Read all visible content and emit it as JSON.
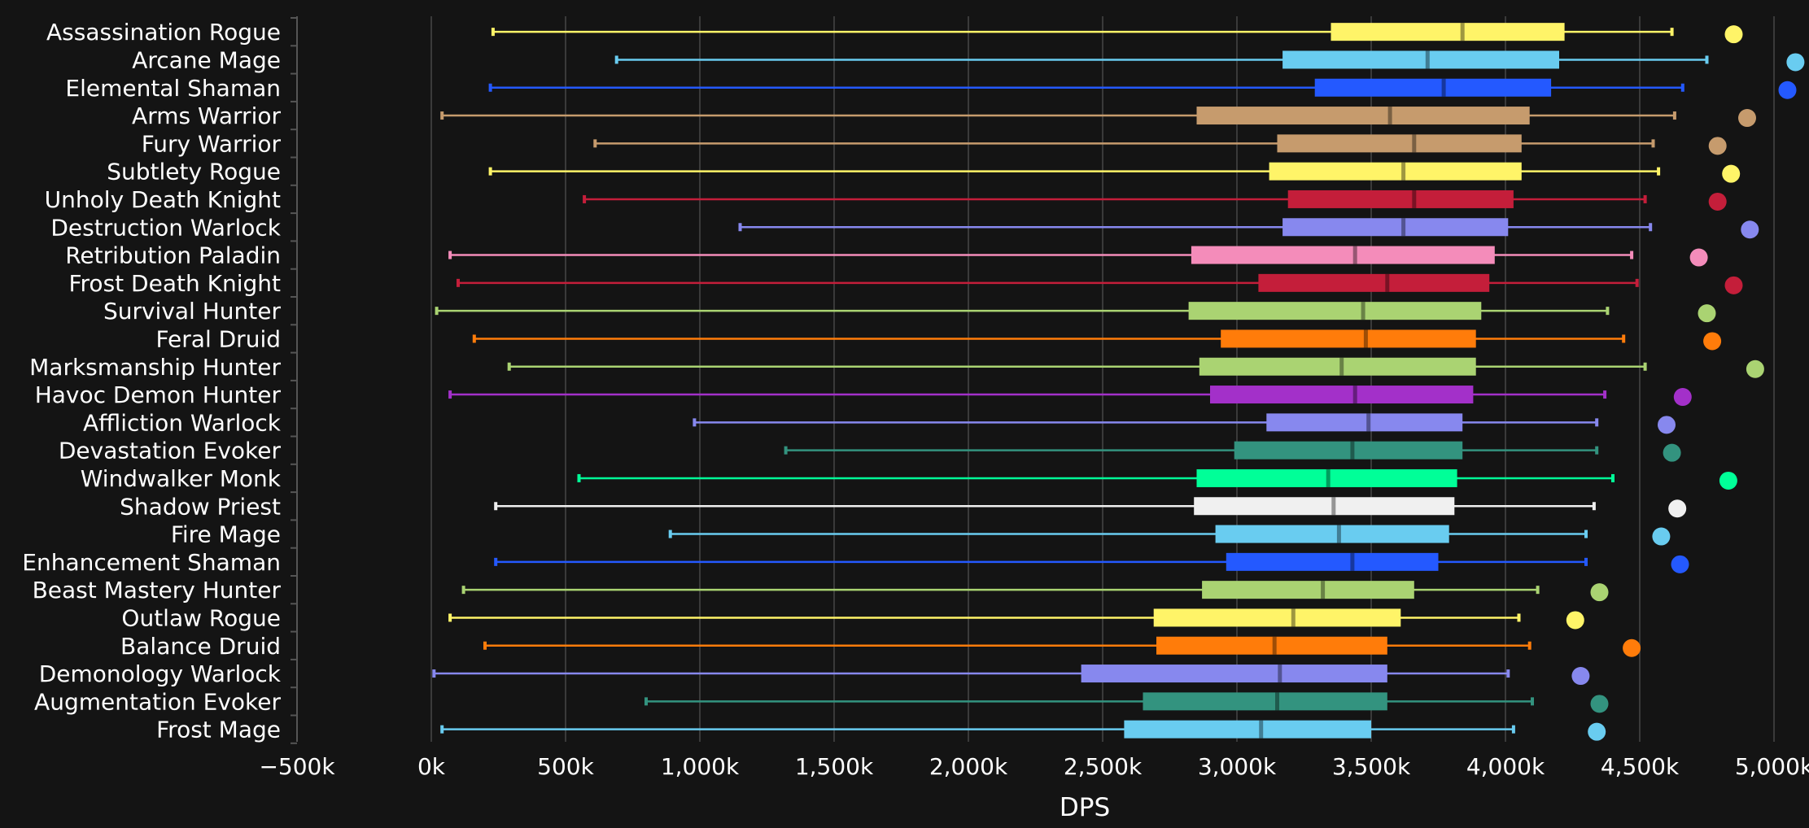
{
  "chart_data": {
    "type": "boxplot",
    "orientation": "horizontal",
    "xlabel": "DPS",
    "xlim": [
      -500000,
      5000000
    ],
    "xticks": [
      -500000,
      0,
      500000,
      1000000,
      1500000,
      2000000,
      2500000,
      3000000,
      3500000,
      4000000,
      4500000,
      5000000
    ],
    "xtick_labels": [
      "−500k",
      "0k",
      "500k",
      "1,000k",
      "1,500k",
      "2,000k",
      "2,500k",
      "3,000k",
      "3,500k",
      "4,000k",
      "4,500k",
      "5,000k"
    ],
    "grid": "vertical",
    "series": [
      {
        "name": "Assassination Rogue",
        "color": "#FFF468",
        "min": 230000,
        "q1": 3350000,
        "median": 3840000,
        "q3": 4220000,
        "max": 4620000,
        "outlier": 4850000
      },
      {
        "name": "Arcane Mage",
        "color": "#69CCF0",
        "min": 690000,
        "q1": 3170000,
        "median": 3710000,
        "q3": 4200000,
        "max": 4750000,
        "outlier": 5080000
      },
      {
        "name": "Elemental Shaman",
        "color": "#2459FF",
        "min": 220000,
        "q1": 3290000,
        "median": 3770000,
        "q3": 4170000,
        "max": 4660000,
        "outlier": 5050000
      },
      {
        "name": "Arms Warrior",
        "color": "#C69B6D",
        "min": 40000,
        "q1": 2850000,
        "median": 3570000,
        "q3": 4090000,
        "max": 4630000,
        "outlier": 4900000
      },
      {
        "name": "Fury Warrior",
        "color": "#C69B6D",
        "min": 610000,
        "q1": 3150000,
        "median": 3660000,
        "q3": 4060000,
        "max": 4550000,
        "outlier": 4790000
      },
      {
        "name": "Subtlety Rogue",
        "color": "#FFF468",
        "min": 220000,
        "q1": 3120000,
        "median": 3620000,
        "q3": 4060000,
        "max": 4570000,
        "outlier": 4840000
      },
      {
        "name": "Unholy Death Knight",
        "color": "#C41E3A",
        "min": 570000,
        "q1": 3190000,
        "median": 3660000,
        "q3": 4030000,
        "max": 4520000,
        "outlier": 4790000
      },
      {
        "name": "Destruction Warlock",
        "color": "#8788EE",
        "min": 1150000,
        "q1": 3170000,
        "median": 3620000,
        "q3": 4010000,
        "max": 4540000,
        "outlier": 4910000
      },
      {
        "name": "Retribution Paladin",
        "color": "#F48CBA",
        "min": 70000,
        "q1": 2830000,
        "median": 3440000,
        "q3": 3960000,
        "max": 4470000,
        "outlier": 4720000
      },
      {
        "name": "Frost Death Knight",
        "color": "#C41E3A",
        "min": 100000,
        "q1": 3080000,
        "median": 3560000,
        "q3": 3940000,
        "max": 4490000,
        "outlier": 4850000
      },
      {
        "name": "Survival Hunter",
        "color": "#AAD372",
        "min": 20000,
        "q1": 2820000,
        "median": 3470000,
        "q3": 3910000,
        "max": 4380000,
        "outlier": 4750000
      },
      {
        "name": "Feral Druid",
        "color": "#FF7C0A",
        "min": 160000,
        "q1": 2940000,
        "median": 3480000,
        "q3": 3890000,
        "max": 4440000,
        "outlier": 4770000
      },
      {
        "name": "Marksmanship Hunter",
        "color": "#AAD372",
        "min": 290000,
        "q1": 2860000,
        "median": 3390000,
        "q3": 3890000,
        "max": 4520000,
        "outlier": 4930000
      },
      {
        "name": "Havoc Demon Hunter",
        "color": "#A330C9",
        "min": 70000,
        "q1": 2900000,
        "median": 3440000,
        "q3": 3880000,
        "max": 4370000,
        "outlier": 4660000
      },
      {
        "name": "Affliction Warlock",
        "color": "#8788EE",
        "min": 980000,
        "q1": 3110000,
        "median": 3490000,
        "q3": 3840000,
        "max": 4340000,
        "outlier": 4600000
      },
      {
        "name": "Devastation Evoker",
        "color": "#33937F",
        "min": 1320000,
        "q1": 2990000,
        "median": 3430000,
        "q3": 3840000,
        "max": 4340000,
        "outlier": 4620000
      },
      {
        "name": "Windwalker Monk",
        "color": "#00FF98",
        "min": 550000,
        "q1": 2850000,
        "median": 3340000,
        "q3": 3820000,
        "max": 4400000,
        "outlier": 4830000
      },
      {
        "name": "Shadow Priest",
        "color": "#F0F0F0",
        "min": 240000,
        "q1": 2840000,
        "median": 3360000,
        "q3": 3810000,
        "max": 4330000,
        "outlier": 4640000
      },
      {
        "name": "Fire Mage",
        "color": "#69CCF0",
        "min": 890000,
        "q1": 2920000,
        "median": 3380000,
        "q3": 3790000,
        "max": 4300000,
        "outlier": 4580000
      },
      {
        "name": "Enhancement Shaman",
        "color": "#2459FF",
        "min": 240000,
        "q1": 2960000,
        "median": 3430000,
        "q3": 3750000,
        "max": 4300000,
        "outlier": 4650000
      },
      {
        "name": "Beast Mastery Hunter",
        "color": "#AAD372",
        "min": 120000,
        "q1": 2870000,
        "median": 3320000,
        "q3": 3660000,
        "max": 4120000,
        "outlier": 4350000
      },
      {
        "name": "Outlaw Rogue",
        "color": "#FFF468",
        "min": 70000,
        "q1": 2690000,
        "median": 3210000,
        "q3": 3610000,
        "max": 4050000,
        "outlier": 4260000
      },
      {
        "name": "Balance Druid",
        "color": "#FF7C0A",
        "min": 200000,
        "q1": 2700000,
        "median": 3140000,
        "q3": 3560000,
        "max": 4090000,
        "outlier": 4470000
      },
      {
        "name": "Demonology Warlock",
        "color": "#8788EE",
        "min": 10000,
        "q1": 2420000,
        "median": 3160000,
        "q3": 3560000,
        "max": 4010000,
        "outlier": 4280000
      },
      {
        "name": "Augmentation Evoker",
        "color": "#33937F",
        "min": 800000,
        "q1": 2650000,
        "median": 3150000,
        "q3": 3560000,
        "max": 4100000,
        "outlier": 4350000
      },
      {
        "name": "Frost Mage",
        "color": "#69CCF0",
        "min": 40000,
        "q1": 2580000,
        "median": 3090000,
        "q3": 3500000,
        "max": 4030000,
        "outlier": 4340000
      }
    ]
  }
}
